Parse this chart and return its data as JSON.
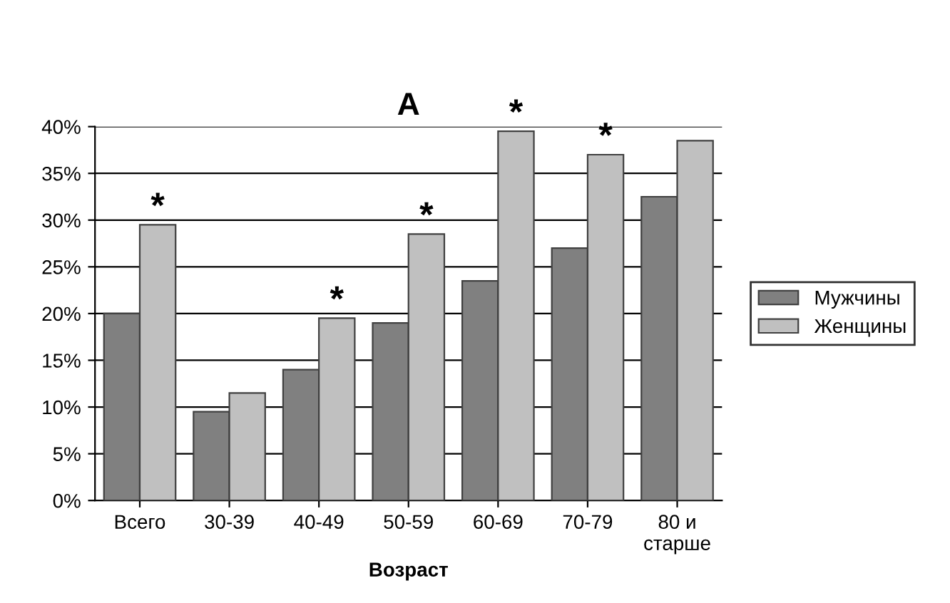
{
  "chart_data": {
    "type": "bar",
    "title": "А",
    "xlabel": "Возраст",
    "categories": [
      "Всего",
      "30-39",
      "40-49",
      "50-59",
      "60-69",
      "70-79",
      "80 и\nстарше"
    ],
    "series": [
      {
        "name": "Мужчины",
        "color": "#808080",
        "values": [
          20,
          9.5,
          14,
          19,
          23.5,
          27,
          32.5
        ]
      },
      {
        "name": "Женщины",
        "color": "#c0c0c0",
        "values": [
          29.5,
          11.5,
          19.5,
          28.5,
          39.5,
          37,
          38.5
        ]
      }
    ],
    "ylim": [
      0,
      40
    ],
    "yticks": [
      {
        "value": 0,
        "label": "0%"
      },
      {
        "value": 5,
        "label": "5%"
      },
      {
        "value": 10,
        "label": "10%"
      },
      {
        "value": 15,
        "label": "15%"
      },
      {
        "value": 20,
        "label": "20%"
      },
      {
        "value": 25,
        "label": "25%"
      },
      {
        "value": 30,
        "label": "30%"
      },
      {
        "value": 35,
        "label": "35%"
      },
      {
        "value": 40,
        "label": "40%"
      }
    ],
    "grid": "y",
    "legend": "right",
    "annotations": [
      {
        "text": "*",
        "x": "Всего",
        "y": 29.5
      },
      {
        "text": "*",
        "x": "40-49",
        "y": 19.5
      },
      {
        "text": "*",
        "x": "50-59",
        "y": 28.5
      },
      {
        "text": "*",
        "x": "60-69",
        "y": 39.5
      },
      {
        "text": "*",
        "x": "70-79",
        "y": 37
      }
    ]
  }
}
